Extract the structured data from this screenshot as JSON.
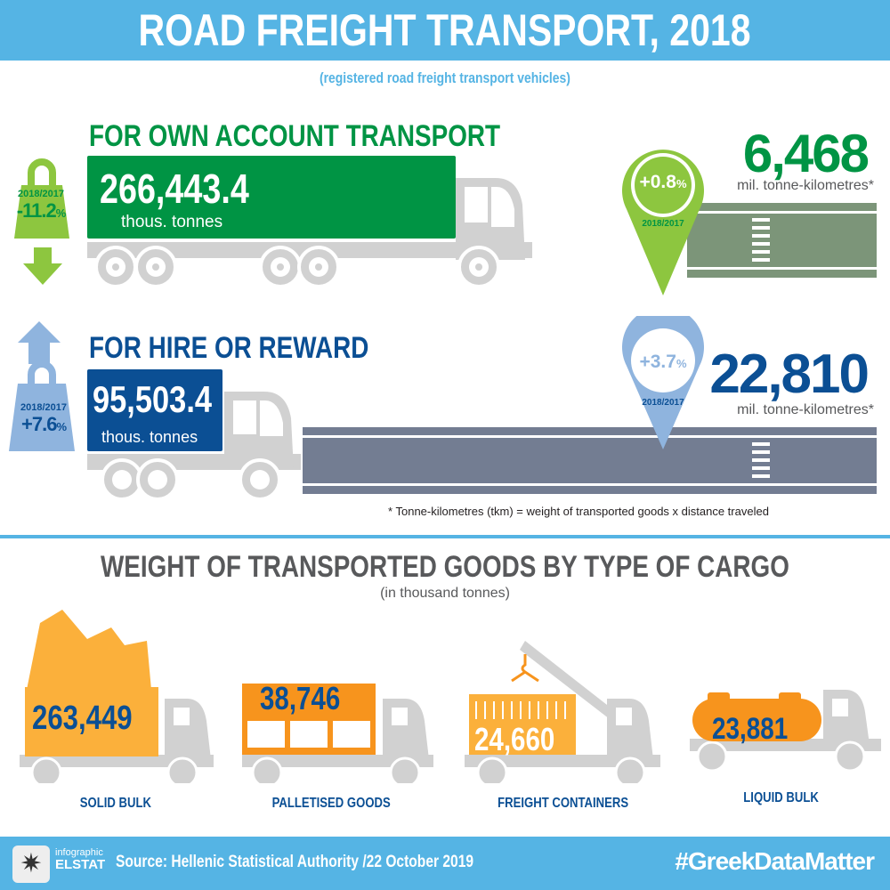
{
  "header": {
    "title": "ROAD FREIGHT TRANSPORT, 2018",
    "subtitle": "(registered road freight transport vehicles)"
  },
  "own_account": {
    "title": "FOR OWN ACCOUNT TRANSPORT",
    "weight_value": "266,443.4",
    "weight_unit": "thous. tonnes",
    "change_period": "2018/2017",
    "change_value": "-11.2",
    "change_pct": "%",
    "tkm_value": "6,468",
    "tkm_unit": "mil. tonne-kilometres*",
    "tkm_change": "+0.8",
    "tkm_change_pct": "%",
    "tkm_period": "2018/2017",
    "color": "#009444",
    "accent": "#8dc63f"
  },
  "hire_reward": {
    "title": "FOR HIRE OR REWARD",
    "weight_value": "95,503.4",
    "weight_unit": "thous. tonnes",
    "change_period": "2018/2017",
    "change_value": "+7.6",
    "change_pct": "%",
    "tkm_value": "22,810",
    "tkm_unit": "mil. tonne-kilometres*",
    "tkm_change": "+3.7",
    "tkm_change_pct": "%",
    "tkm_period": "2018/2017",
    "color": "#0b4f94",
    "accent": "#8fb4de"
  },
  "footnote": "* Tonne-kilometres (tkm) = weight of transported goods x distance traveled",
  "cargo": {
    "title": "WEIGHT OF TRANSPORTED GOODS BY TYPE OF CARGO",
    "subtitle": "(in thousand tonnes)",
    "items": [
      {
        "label": "SOLID BULK",
        "value": "263,449"
      },
      {
        "label": "PALLETISED GOODS",
        "value": "38,746"
      },
      {
        "label": "FREIGHT CONTAINERS",
        "value": "24,660"
      },
      {
        "label": "LIQUID BULK",
        "value": "23,881"
      }
    ]
  },
  "footer": {
    "logo_top": "infographic",
    "logo_bottom": "ELSTAT",
    "source": "Source: Hellenic Statistical Authority /22 October 2019",
    "hashtag": "#GreekDataMatter"
  }
}
